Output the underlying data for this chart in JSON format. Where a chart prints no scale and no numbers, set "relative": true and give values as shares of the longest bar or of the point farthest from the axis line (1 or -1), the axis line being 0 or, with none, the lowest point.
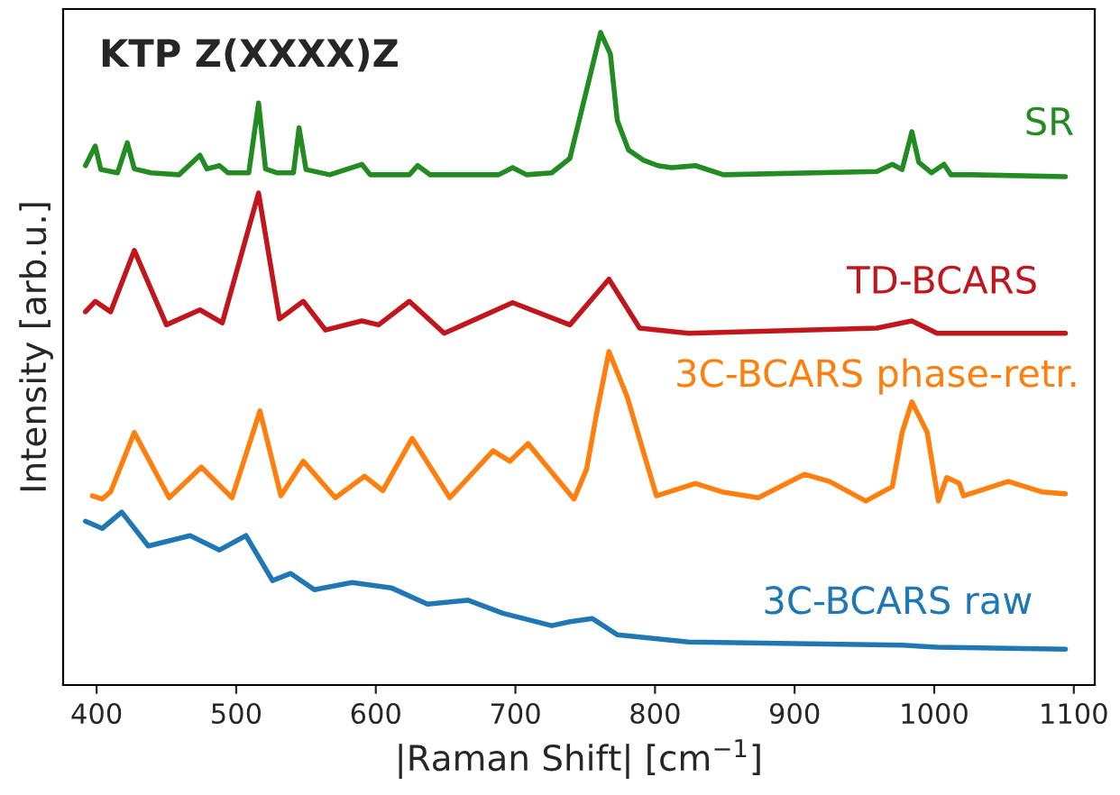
{
  "chart_data": {
    "type": "line",
    "title": "KTP Z(XXXX)Z",
    "xlabel": "|Raman Shift| [cm$^{−1}$]",
    "ylabel": "Intensity [arb.u.]",
    "relative": true,
    "xlim": [
      376,
      1115
    ],
    "xticks": [
      400,
      500,
      600,
      700,
      800,
      900,
      1000,
      1100
    ],
    "series": [
      {
        "name": "SR",
        "color": "#228b22",
        "x": [
          392,
          399,
          403,
          415,
          422,
          427,
          439,
          459,
          474,
          479,
          488,
          494,
          509,
          516,
          521,
          529,
          541,
          545,
          550,
          567,
          590,
          596,
          624,
          630,
          639,
          688,
          698,
          708,
          726,
          739,
          751,
          761,
          768,
          773,
          781,
          792,
          802,
          812,
          829,
          849,
          959,
          970,
          977,
          984,
          989,
          998,
          1007,
          1012,
          1027,
          1094
        ],
        "values": [
          0.796,
          0.826,
          0.79,
          0.785,
          0.831,
          0.791,
          0.785,
          0.782,
          0.812,
          0.791,
          0.796,
          0.785,
          0.785,
          0.892,
          0.791,
          0.785,
          0.785,
          0.854,
          0.79,
          0.782,
          0.798,
          0.782,
          0.782,
          0.796,
          0.782,
          0.782,
          0.793,
          0.782,
          0.785,
          0.807,
          0.912,
          1.0,
          0.967,
          0.865,
          0.82,
          0.804,
          0.796,
          0.793,
          0.796,
          0.782,
          0.787,
          0.798,
          0.79,
          0.848,
          0.801,
          0.785,
          0.798,
          0.782,
          0.782,
          0.779
        ]
      },
      {
        "name": "TD-BCARS",
        "color": "#c0161c",
        "x": [
          392,
          399,
          410,
          427,
          450,
          474,
          490,
          516,
          531,
          548,
          564,
          590,
          602,
          624,
          649,
          698,
          739,
          767,
          789,
          824,
          959,
          984,
          1002,
          1094
        ],
        "values": [
          0.572,
          0.588,
          0.572,
          0.666,
          0.552,
          0.575,
          0.555,
          0.754,
          0.561,
          0.588,
          0.544,
          0.558,
          0.552,
          0.588,
          0.539,
          0.586,
          0.552,
          0.622,
          0.547,
          0.539,
          0.547,
          0.558,
          0.539,
          0.539
        ]
      },
      {
        "name": "3C-BCARS phase-retr.",
        "color": "#ff7f0e",
        "x": [
          397,
          404,
          410,
          427,
          452,
          475,
          497,
          517,
          532,
          548,
          571,
          592,
          605,
          626,
          653,
          684,
          696,
          709,
          742,
          751,
          758,
          767,
          780,
          801,
          829,
          848,
          874,
          907,
          925,
          951,
          970,
          977,
          984,
          995,
          1003,
          1009,
          1018,
          1021,
          1053,
          1077,
          1094
        ],
        "values": [
          0.29,
          0.285,
          0.296,
          0.387,
          0.287,
          0.334,
          0.287,
          0.42,
          0.29,
          0.343,
          0.287,
          0.32,
          0.298,
          0.378,
          0.287,
          0.359,
          0.343,
          0.37,
          0.285,
          0.331,
          0.414,
          0.511,
          0.442,
          0.29,
          0.309,
          0.296,
          0.287,
          0.323,
          0.312,
          0.282,
          0.304,
          0.387,
          0.434,
          0.387,
          0.282,
          0.318,
          0.309,
          0.29,
          0.312,
          0.296,
          0.293
        ]
      },
      {
        "name": "3C-BCARS raw",
        "color": "#1f77b4",
        "x": [
          392,
          404,
          418,
          437,
          467,
          488,
          507,
          526,
          539,
          556,
          583,
          611,
          637,
          666,
          691,
          726,
          739,
          755,
          773,
          824,
          977,
          1002,
          1094
        ],
        "values": [
          0.251,
          0.24,
          0.265,
          0.213,
          0.229,
          0.207,
          0.229,
          0.16,
          0.171,
          0.146,
          0.157,
          0.149,
          0.124,
          0.13,
          0.11,
          0.091,
          0.097,
          0.102,
          0.077,
          0.066,
          0.061,
          0.058,
          0.055
        ]
      }
    ]
  }
}
